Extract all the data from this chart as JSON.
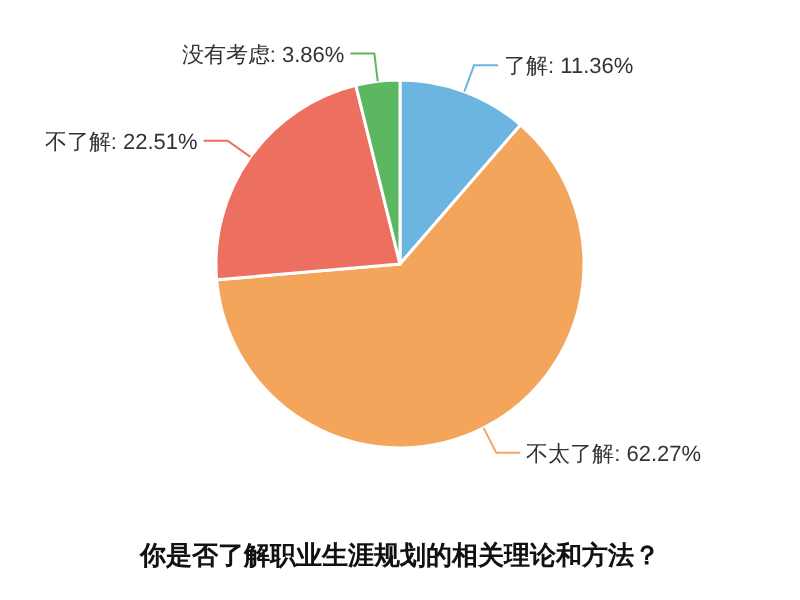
{
  "chart_data": {
    "type": "pie",
    "title": "你是否了解职业生涯规划的相关理论和方法？",
    "categories": [
      "了解",
      "不太了解",
      "不了解",
      "没有考虑"
    ],
    "values": [
      11.36,
      62.27,
      22.51,
      3.86
    ],
    "value_labels": [
      "11.36%",
      "62.27%",
      "22.51%",
      "3.86%"
    ],
    "colors": [
      "#6cb5e1",
      "#f4a55c",
      "#ec6f5f",
      "#5cb860"
    ]
  }
}
